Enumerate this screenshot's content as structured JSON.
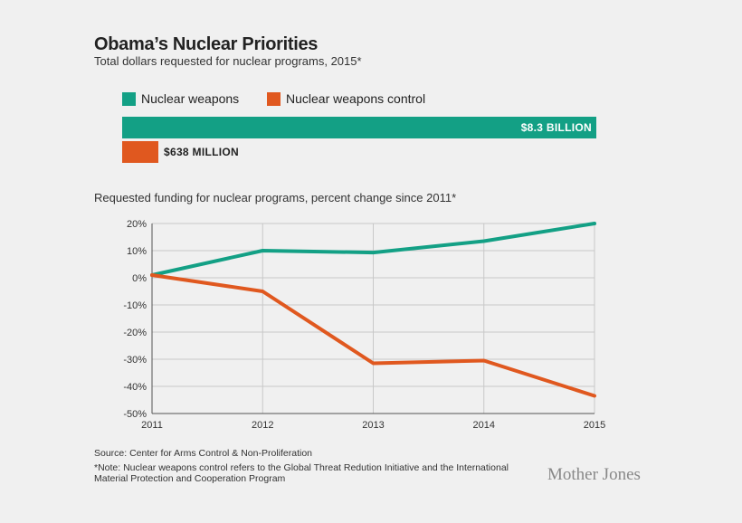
{
  "header": {
    "title": "Obama’s Nuclear Priorities",
    "subtitle": "Total dollars requested for nuclear programs, 2015*"
  },
  "colors": {
    "weapons": "#13a085",
    "control": "#e0581f",
    "grid": "#c8c8c8",
    "axis": "#555555"
  },
  "legend": {
    "weapons": "Nuclear weapons",
    "control": "Nuclear weapons control"
  },
  "bars": {
    "weapons_label": "$8.3 BILLION",
    "control_label": "$638 MILLION"
  },
  "chart_data": [
    {
      "type": "bar",
      "categories": [
        "Nuclear weapons",
        "Nuclear weapons control"
      ],
      "values": [
        8300,
        638
      ],
      "value_labels": [
        "$8.3 BILLION",
        "$638 MILLION"
      ],
      "title": "Total dollars requested for nuclear programs, 2015*",
      "orientation": "horizontal"
    },
    {
      "type": "line",
      "title": "Requested funding for nuclear programs, percent change since 2011*",
      "x": [
        2011,
        2012,
        2013,
        2014,
        2015
      ],
      "x_ticks": [
        "2011",
        "2012",
        "2013",
        "2014",
        "2015"
      ],
      "y_ticks": [
        "20%",
        "10%",
        "0%",
        "-10%",
        "-20%",
        "-30%",
        "-40%",
        "-50%"
      ],
      "y_tick_values": [
        20,
        10,
        0,
        -10,
        -20,
        -30,
        -40,
        -50
      ],
      "ylim": [
        -50,
        20
      ],
      "grid": true,
      "series": [
        {
          "name": "Nuclear weapons",
          "values": [
            1,
            10,
            9.3,
            13.5,
            20
          ]
        },
        {
          "name": "Nuclear weapons control",
          "values": [
            1,
            -5,
            -31.5,
            -30.5,
            -43.5
          ]
        }
      ]
    }
  ],
  "footer": {
    "source": "Source: Center for Arms Control & Non-Proliferation",
    "note": "*Note: Nuclear weapons control refers to the Global Threat Redution Initiative and the International Material Protection and Cooperation Program",
    "logo": "Mother Jones"
  }
}
